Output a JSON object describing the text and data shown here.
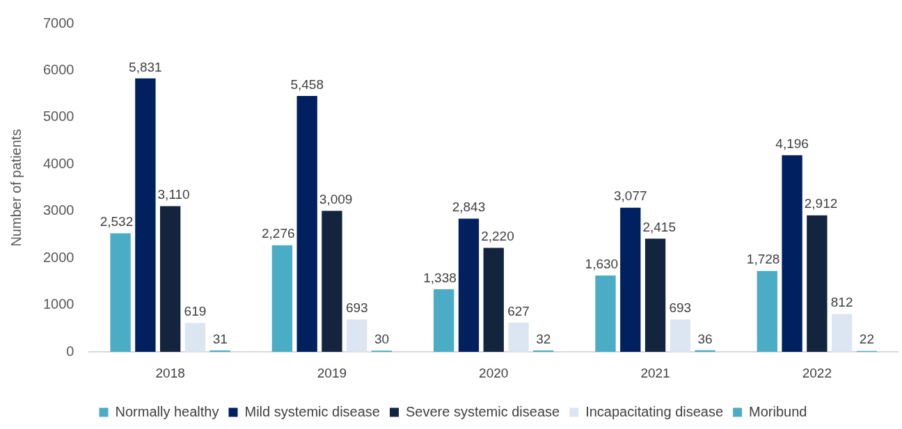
{
  "chart_data": {
    "type": "bar",
    "categories": [
      "2018",
      "2019",
      "2020",
      "2021",
      "2022"
    ],
    "ylabel": "Number of patients",
    "ylim": [
      0,
      7000
    ],
    "yticks": [
      0,
      1000,
      2000,
      3000,
      4000,
      5000,
      6000,
      7000
    ],
    "grid": false,
    "legend": "bottom",
    "series": [
      {
        "name": "Normally healthy",
        "color": "#4bacc6",
        "values": [
          2532,
          2276,
          1338,
          1630,
          1728
        ],
        "value_labels": [
          "2,532",
          "2,276",
          "1,338",
          "1,630",
          "1,728"
        ]
      },
      {
        "name": "Mild systemic disease",
        "color": "#002060",
        "values": [
          5831,
          5458,
          2843,
          3077,
          4196
        ],
        "value_labels": [
          "5,831",
          "5,458",
          "2,843",
          "3,077",
          "4,196"
        ]
      },
      {
        "name": "Severe systemic disease",
        "color": "#13243f",
        "values": [
          3110,
          3009,
          2220,
          2415,
          2912
        ],
        "value_labels": [
          "3,110",
          "3,009",
          "2,220",
          "2,415",
          "2,912"
        ]
      },
      {
        "name": "Incapacitating disease",
        "color": "#dce6f2",
        "values": [
          619,
          693,
          627,
          693,
          812
        ],
        "value_labels": [
          "619",
          "693",
          "627",
          "693",
          "812"
        ]
      },
      {
        "name": "Moribund",
        "color": "#4bacc6",
        "values": [
          31,
          30,
          32,
          36,
          22
        ],
        "value_labels": [
          "31",
          "30",
          "32",
          "36",
          "22"
        ]
      }
    ]
  }
}
